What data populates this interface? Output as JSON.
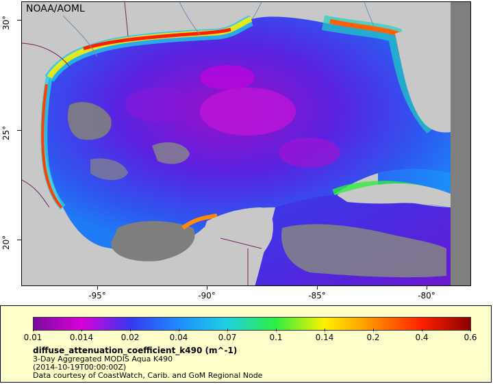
{
  "map": {
    "org_label": "NOAA/AOML",
    "lat_labels": [
      "30°",
      "25°",
      "20°"
    ],
    "lon_labels": [
      "-95°",
      "-90°",
      "-85°",
      "-80°"
    ]
  },
  "legend": {
    "ticks": [
      "0.01",
      "0.014",
      "0.02",
      "0.04",
      "0.07",
      "0.1",
      "0.14",
      "0.2",
      "0.4",
      "0.6"
    ],
    "colors": [
      "#7a0ba0",
      "#d800d8",
      "#3838f0",
      "#1e8cff",
      "#20d0e0",
      "#30ee40",
      "#fff000",
      "#ff8c00",
      "#ff2000",
      "#8a0000"
    ],
    "variable_title": "diffuse_attenuation_coefficient_k490 (m^-1)",
    "product": "3-Day Aggregated MODIS Aqua K490",
    "date": "(2014-10-19T00:00:00Z)",
    "credit": "Data courtesy of CoastWatch, Carib. and GoM Regional Node"
  }
}
